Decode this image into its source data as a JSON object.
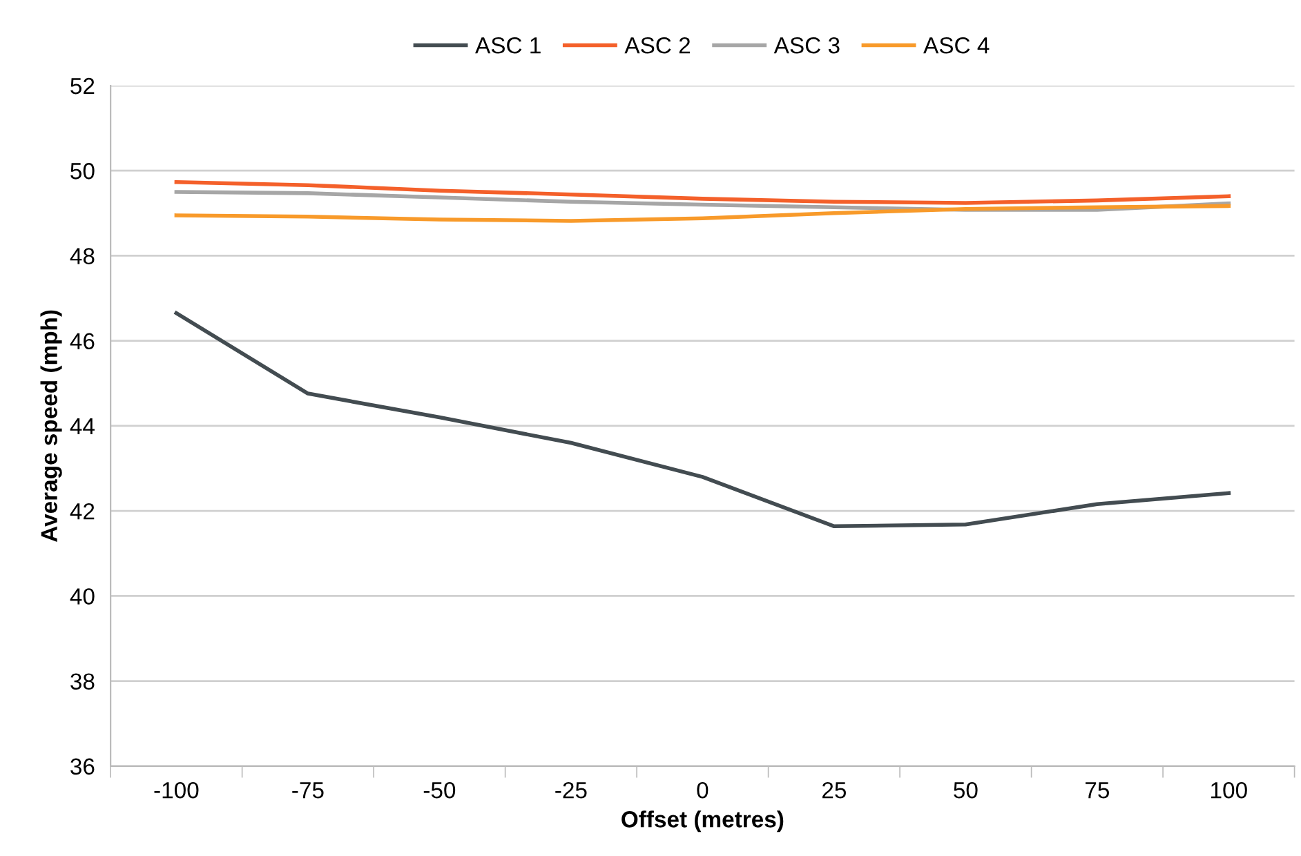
{
  "chart_data": {
    "type": "line",
    "xlabel": "Offset (metres)",
    "ylabel": "Average speed (mph)",
    "categories": [
      "-100",
      "-75",
      "-50",
      "-25",
      "0",
      "25",
      "50",
      "75",
      "100"
    ],
    "series": [
      {
        "name": "ASC 1",
        "color": "#434c51",
        "values": [
          46.65,
          44.76,
          44.2,
          43.6,
          42.8,
          41.64,
          41.68,
          42.16,
          42.42
        ]
      },
      {
        "name": "ASC 2",
        "color": "#f4602a",
        "values": [
          49.73,
          49.66,
          49.53,
          49.44,
          49.34,
          49.27,
          49.24,
          49.3,
          49.4
        ]
      },
      {
        "name": "ASC 3",
        "color": "#a6a6a6",
        "values": [
          49.5,
          49.47,
          49.37,
          49.27,
          49.2,
          49.14,
          49.08,
          49.08,
          49.23
        ]
      },
      {
        "name": "ASC 4",
        "color": "#f89a2a",
        "values": [
          48.95,
          48.92,
          48.85,
          48.82,
          48.88,
          49.0,
          49.1,
          49.14,
          49.17
        ]
      }
    ],
    "ylim": [
      36,
      52
    ],
    "yticks": [
      36,
      38,
      40,
      42,
      44,
      46,
      48,
      50,
      52
    ],
    "grid": "y",
    "legend": "top",
    "marker": "none",
    "line_style": "solid"
  }
}
